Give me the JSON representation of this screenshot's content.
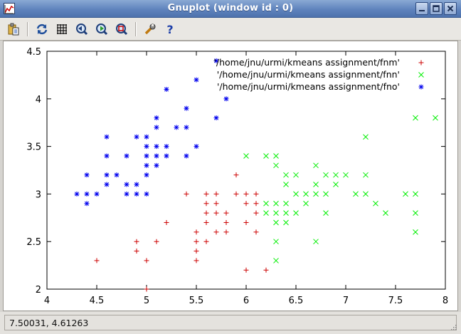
{
  "window": {
    "title": "Gnuplot (window id : 0)"
  },
  "toolbar": {
    "buttons": [
      {
        "icon": "copy-to-clipboard-icon"
      },
      {
        "icon": "replot-icon"
      },
      {
        "icon": "grid-icon"
      },
      {
        "icon": "zoom-previous-icon"
      },
      {
        "icon": "zoom-next-icon"
      },
      {
        "icon": "autoscale-icon"
      },
      {
        "icon": "settings-icon"
      },
      {
        "icon": "help-icon"
      }
    ]
  },
  "status": {
    "coords": "7.50031,  4.61263"
  },
  "colors": {
    "fnm": "#cc0000",
    "fnn": "#00ee00",
    "fno": "#0000ee"
  },
  "chart_data": {
    "type": "scatter",
    "xlim": [
      4,
      8
    ],
    "ylim": [
      2,
      4.5
    ],
    "xticks": [
      "4",
      "4.5",
      "5",
      "5.5",
      "6",
      "6.5",
      "7",
      "7.5",
      "8"
    ],
    "yticks": [
      "2",
      "2.5",
      "3",
      "3.5",
      "4",
      "4.5"
    ],
    "legend_position": "top-right",
    "grid": false,
    "series": [
      {
        "name": "'/home/jnu/urmi/kmeans assignment/fnm'",
        "marker": "plus",
        "color": "#cc0000",
        "points": [
          [
            4.5,
            2.3
          ],
          [
            4.9,
            2.5
          ],
          [
            4.9,
            2.4
          ],
          [
            5.0,
            2.3
          ],
          [
            5.0,
            2.0
          ],
          [
            5.1,
            2.5
          ],
          [
            5.2,
            2.7
          ],
          [
            5.4,
            3.0
          ],
          [
            5.5,
            2.6
          ],
          [
            5.5,
            2.5
          ],
          [
            5.5,
            2.4
          ],
          [
            5.5,
            2.3
          ],
          [
            5.6,
            3.0
          ],
          [
            5.6,
            2.9
          ],
          [
            5.6,
            2.8
          ],
          [
            5.6,
            2.7
          ],
          [
            5.6,
            2.5
          ],
          [
            5.7,
            3.0
          ],
          [
            5.7,
            2.9
          ],
          [
            5.7,
            2.8
          ],
          [
            5.7,
            2.6
          ],
          [
            5.8,
            2.8
          ],
          [
            5.8,
            2.7
          ],
          [
            5.8,
            2.6
          ],
          [
            5.9,
            3.2
          ],
          [
            5.9,
            3.0
          ],
          [
            6.0,
            3.0
          ],
          [
            6.0,
            2.9
          ],
          [
            6.0,
            2.7
          ],
          [
            6.0,
            2.2
          ],
          [
            6.1,
            3.0
          ],
          [
            6.1,
            2.9
          ],
          [
            6.1,
            2.8
          ],
          [
            6.1,
            2.6
          ],
          [
            6.2,
            2.2
          ]
        ]
      },
      {
        "name": "'/home/jnu/urmi/kmeans assignment/fnn'",
        "marker": "cross",
        "color": "#00ee00",
        "points": [
          [
            6.0,
            3.4
          ],
          [
            6.2,
            3.4
          ],
          [
            6.2,
            2.9
          ],
          [
            6.2,
            2.8
          ],
          [
            6.3,
            3.4
          ],
          [
            6.3,
            3.3
          ],
          [
            6.3,
            2.9
          ],
          [
            6.3,
            2.8
          ],
          [
            6.3,
            2.7
          ],
          [
            6.3,
            2.5
          ],
          [
            6.3,
            2.3
          ],
          [
            6.4,
            3.2
          ],
          [
            6.4,
            3.1
          ],
          [
            6.4,
            2.9
          ],
          [
            6.4,
            2.8
          ],
          [
            6.4,
            2.7
          ],
          [
            6.5,
            3.2
          ],
          [
            6.5,
            3.0
          ],
          [
            6.5,
            2.8
          ],
          [
            6.6,
            3.0
          ],
          [
            6.6,
            2.9
          ],
          [
            6.7,
            3.3
          ],
          [
            6.7,
            3.1
          ],
          [
            6.7,
            3.0
          ],
          [
            6.7,
            2.5
          ],
          [
            6.8,
            3.2
          ],
          [
            6.8,
            3.0
          ],
          [
            6.8,
            2.8
          ],
          [
            6.9,
            3.2
          ],
          [
            6.9,
            3.1
          ],
          [
            7.0,
            3.2
          ],
          [
            7.1,
            3.0
          ],
          [
            7.2,
            3.6
          ],
          [
            7.2,
            3.2
          ],
          [
            7.2,
            3.0
          ],
          [
            7.3,
            2.9
          ],
          [
            7.4,
            2.8
          ],
          [
            7.6,
            3.0
          ],
          [
            7.7,
            3.8
          ],
          [
            7.7,
            3.0
          ],
          [
            7.7,
            2.8
          ],
          [
            7.7,
            2.6
          ],
          [
            7.9,
            3.8
          ]
        ]
      },
      {
        "name": "'/home/jnu/urmi/kmeans assignment/fno'",
        "marker": "star",
        "color": "#0000ee",
        "points": [
          [
            4.3,
            3.0
          ],
          [
            4.4,
            3.2
          ],
          [
            4.4,
            3.0
          ],
          [
            4.4,
            2.9
          ],
          [
            4.5,
            3.0
          ],
          [
            4.6,
            3.6
          ],
          [
            4.6,
            3.4
          ],
          [
            4.6,
            3.2
          ],
          [
            4.6,
            3.1
          ],
          [
            4.7,
            3.2
          ],
          [
            4.8,
            3.4
          ],
          [
            4.8,
            3.1
          ],
          [
            4.8,
            3.0
          ],
          [
            4.9,
            3.6
          ],
          [
            4.9,
            3.1
          ],
          [
            4.9,
            3.0
          ],
          [
            5.0,
            3.6
          ],
          [
            5.0,
            3.5
          ],
          [
            5.0,
            3.4
          ],
          [
            5.0,
            3.3
          ],
          [
            5.0,
            3.2
          ],
          [
            5.0,
            3.0
          ],
          [
            5.1,
            3.8
          ],
          [
            5.1,
            3.7
          ],
          [
            5.1,
            3.5
          ],
          [
            5.1,
            3.4
          ],
          [
            5.1,
            3.3
          ],
          [
            5.2,
            4.1
          ],
          [
            5.2,
            3.5
          ],
          [
            5.2,
            3.4
          ],
          [
            5.3,
            3.7
          ],
          [
            5.4,
            3.9
          ],
          [
            5.4,
            3.7
          ],
          [
            5.4,
            3.4
          ],
          [
            5.5,
            4.2
          ],
          [
            5.5,
            3.5
          ],
          [
            5.7,
            4.4
          ],
          [
            5.7,
            3.8
          ],
          [
            5.8,
            4.0
          ]
        ]
      }
    ]
  }
}
